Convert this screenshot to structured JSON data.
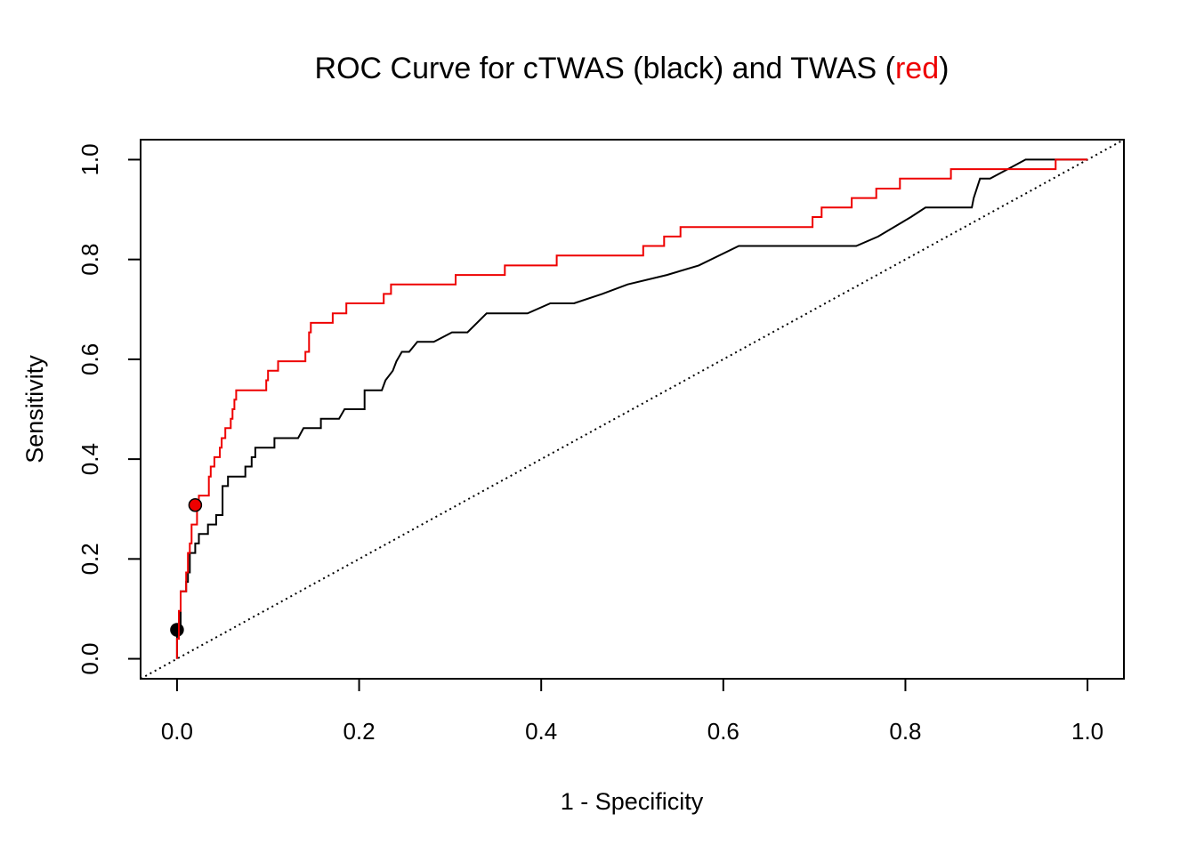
{
  "chart_data": {
    "type": "line",
    "title": {
      "prefix": "ROC Curve for cTWAS (black) and TWAS (",
      "highlight": "red",
      "suffix": ")"
    },
    "xlabel": "1 - Specificity",
    "ylabel": "Sensitivity",
    "xlim": [
      -0.04,
      1.04
    ],
    "ylim": [
      -0.04,
      1.04
    ],
    "x_ticks": [
      "0.0",
      "0.2",
      "0.4",
      "0.6",
      "0.8",
      "1.0"
    ],
    "y_ticks": [
      "0.0",
      "0.2",
      "0.4",
      "0.6",
      "0.8",
      "1.0"
    ],
    "grid": false,
    "colors": {
      "ctwas": "#000000",
      "twas": "#ee0000",
      "reference": "#000000"
    },
    "series": [
      {
        "name": "cTWAS",
        "color": "#000000",
        "points": [
          [
            0,
            0
          ],
          [
            0,
            0.058
          ],
          [
            0.004,
            0.058
          ],
          [
            0.004,
            0.135
          ],
          [
            0.01,
            0.135
          ],
          [
            0.01,
            0.154
          ],
          [
            0.012,
            0.154
          ],
          [
            0.012,
            0.173
          ],
          [
            0.014,
            0.173
          ],
          [
            0.014,
            0.212
          ],
          [
            0.02,
            0.212
          ],
          [
            0.02,
            0.231
          ],
          [
            0.024,
            0.231
          ],
          [
            0.024,
            0.25
          ],
          [
            0.034,
            0.25
          ],
          [
            0.034,
            0.269
          ],
          [
            0.043,
            0.269
          ],
          [
            0.043,
            0.288
          ],
          [
            0.05,
            0.288
          ],
          [
            0.05,
            0.346
          ],
          [
            0.056,
            0.346
          ],
          [
            0.056,
            0.365
          ],
          [
            0.075,
            0.365
          ],
          [
            0.075,
            0.385
          ],
          [
            0.082,
            0.385
          ],
          [
            0.082,
            0.404
          ],
          [
            0.086,
            0.404
          ],
          [
            0.086,
            0.423
          ],
          [
            0.107,
            0.423
          ],
          [
            0.107,
            0.442
          ],
          [
            0.133,
            0.442
          ],
          [
            0.139,
            0.462
          ],
          [
            0.158,
            0.462
          ],
          [
            0.158,
            0.481
          ],
          [
            0.178,
            0.481
          ],
          [
            0.184,
            0.5
          ],
          [
            0.206,
            0.5
          ],
          [
            0.206,
            0.538
          ],
          [
            0.225,
            0.538
          ],
          [
            0.229,
            0.558
          ],
          [
            0.237,
            0.577
          ],
          [
            0.241,
            0.596
          ],
          [
            0.247,
            0.615
          ],
          [
            0.255,
            0.615
          ],
          [
            0.264,
            0.635
          ],
          [
            0.282,
            0.635
          ],
          [
            0.302,
            0.654
          ],
          [
            0.319,
            0.654
          ],
          [
            0.34,
            0.692
          ],
          [
            0.385,
            0.692
          ],
          [
            0.41,
            0.712
          ],
          [
            0.436,
            0.712
          ],
          [
            0.467,
            0.731
          ],
          [
            0.495,
            0.75
          ],
          [
            0.538,
            0.769
          ],
          [
            0.573,
            0.788
          ],
          [
            0.617,
            0.827
          ],
          [
            0.746,
            0.827
          ],
          [
            0.77,
            0.846
          ],
          [
            0.806,
            0.885
          ],
          [
            0.822,
            0.904
          ],
          [
            0.873,
            0.904
          ],
          [
            0.875,
            0.923
          ],
          [
            0.882,
            0.962
          ],
          [
            0.893,
            0.962
          ],
          [
            0.932,
            1.0
          ],
          [
            1.0,
            1.0
          ]
        ],
        "marker": {
          "x": 0,
          "y": 0.058
        }
      },
      {
        "name": "TWAS",
        "color": "#ee0000",
        "points": [
          [
            0,
            0
          ],
          [
            0,
            0.04
          ],
          [
            0.002,
            0.04
          ],
          [
            0.002,
            0.096
          ],
          [
            0.004,
            0.096
          ],
          [
            0.004,
            0.135
          ],
          [
            0.01,
            0.135
          ],
          [
            0.01,
            0.173
          ],
          [
            0.012,
            0.173
          ],
          [
            0.012,
            0.212
          ],
          [
            0.014,
            0.212
          ],
          [
            0.014,
            0.231
          ],
          [
            0.016,
            0.231
          ],
          [
            0.016,
            0.269
          ],
          [
            0.022,
            0.269
          ],
          [
            0.022,
            0.308
          ],
          [
            0.024,
            0.308
          ],
          [
            0.024,
            0.327
          ],
          [
            0.035,
            0.327
          ],
          [
            0.035,
            0.365
          ],
          [
            0.037,
            0.365
          ],
          [
            0.037,
            0.385
          ],
          [
            0.041,
            0.385
          ],
          [
            0.041,
            0.404
          ],
          [
            0.047,
            0.404
          ],
          [
            0.047,
            0.423
          ],
          [
            0.049,
            0.423
          ],
          [
            0.049,
            0.442
          ],
          [
            0.053,
            0.442
          ],
          [
            0.053,
            0.462
          ],
          [
            0.059,
            0.462
          ],
          [
            0.059,
            0.481
          ],
          [
            0.061,
            0.481
          ],
          [
            0.061,
            0.5
          ],
          [
            0.063,
            0.5
          ],
          [
            0.063,
            0.519
          ],
          [
            0.065,
            0.519
          ],
          [
            0.065,
            0.538
          ],
          [
            0.098,
            0.538
          ],
          [
            0.098,
            0.558
          ],
          [
            0.1,
            0.558
          ],
          [
            0.1,
            0.577
          ],
          [
            0.111,
            0.577
          ],
          [
            0.111,
            0.596
          ],
          [
            0.141,
            0.596
          ],
          [
            0.141,
            0.615
          ],
          [
            0.145,
            0.615
          ],
          [
            0.145,
            0.654
          ],
          [
            0.147,
            0.654
          ],
          [
            0.147,
            0.673
          ],
          [
            0.171,
            0.673
          ],
          [
            0.171,
            0.692
          ],
          [
            0.186,
            0.692
          ],
          [
            0.186,
            0.712
          ],
          [
            0.227,
            0.712
          ],
          [
            0.227,
            0.731
          ],
          [
            0.235,
            0.731
          ],
          [
            0.235,
            0.75
          ],
          [
            0.306,
            0.75
          ],
          [
            0.306,
            0.769
          ],
          [
            0.36,
            0.769
          ],
          [
            0.36,
            0.788
          ],
          [
            0.417,
            0.788
          ],
          [
            0.417,
            0.808
          ],
          [
            0.512,
            0.808
          ],
          [
            0.512,
            0.827
          ],
          [
            0.535,
            0.827
          ],
          [
            0.535,
            0.846
          ],
          [
            0.553,
            0.846
          ],
          [
            0.553,
            0.865
          ],
          [
            0.698,
            0.865
          ],
          [
            0.698,
            0.885
          ],
          [
            0.708,
            0.885
          ],
          [
            0.708,
            0.904
          ],
          [
            0.741,
            0.904
          ],
          [
            0.741,
            0.923
          ],
          [
            0.768,
            0.923
          ],
          [
            0.768,
            0.942
          ],
          [
            0.794,
            0.942
          ],
          [
            0.794,
            0.962
          ],
          [
            0.85,
            0.962
          ],
          [
            0.85,
            0.981
          ],
          [
            0.965,
            0.981
          ],
          [
            0.965,
            1.0
          ],
          [
            1.0,
            1.0
          ]
        ],
        "marker": {
          "x": 0.02,
          "y": 0.308
        }
      }
    ],
    "reference_line": {
      "from": [
        -0.04,
        -0.04
      ],
      "to": [
        1.04,
        1.04
      ],
      "style": "dotted"
    }
  }
}
